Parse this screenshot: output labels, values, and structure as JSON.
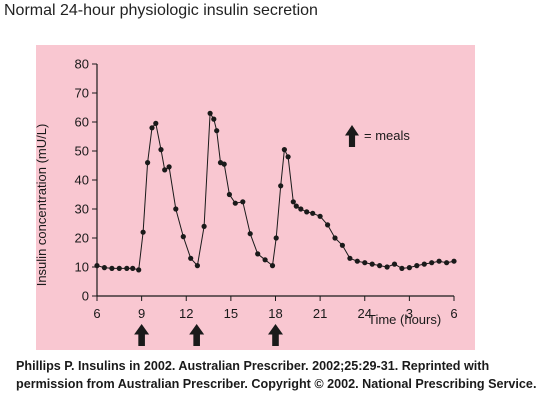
{
  "title": "Normal 24-hour physiologic insulin secretion",
  "caption": {
    "line1": "Phillips P. Insulins in 2002. Australian Prescriber. 2002;25:29-31. Reprinted with",
    "line2": "permission from Australian Prescriber. Copyright © 2002. National Prescribing Service."
  },
  "colors": {
    "plot_background": "#f9c7d1",
    "line": "#1a1a1a",
    "arrow": "#1a1a1a"
  },
  "chart_data": {
    "type": "line",
    "title": "Normal 24-hour physiologic insulin secretion",
    "xlabel": "Time (hours)",
    "ylabel": "Insulin concentration (mU/L)",
    "ylim": [
      0,
      80
    ],
    "xlim_clock_hours": [
      6,
      30
    ],
    "x_tick_labels": [
      "6",
      "9",
      "12",
      "15",
      "18",
      "21",
      "24",
      "3",
      "6"
    ],
    "y_tick_labels": [
      "0",
      "10",
      "20",
      "30",
      "40",
      "50",
      "60",
      "70",
      "80"
    ],
    "grid": false,
    "legend": {
      "label": "= meals",
      "icon": "up-arrow-icon",
      "placement": "right"
    },
    "meals_at_clock_hours": [
      9,
      12.7,
      18
    ],
    "series": [
      {
        "x": [
          6,
          6.5,
          7,
          7.5,
          8,
          8.4,
          8.8,
          9.1,
          9.4,
          9.7,
          9.95,
          10.3,
          10.55,
          10.85,
          11.3,
          11.8,
          12.3,
          12.75,
          13.2,
          13.6,
          13.85,
          14.05,
          14.3,
          14.55,
          14.9,
          15.3,
          15.8,
          16.3,
          16.8,
          17.3,
          17.8,
          18.05,
          18.35,
          18.6,
          18.85,
          19.2,
          19.4,
          19.7,
          20.1,
          20.5,
          21,
          21.5,
          22,
          22.5,
          23,
          23.5,
          24,
          24.5,
          25,
          25.5,
          26,
          26.5,
          27,
          27.5,
          28,
          28.5,
          29,
          29.5,
          30
        ],
        "y": [
          10.5,
          9.8,
          9.5,
          9.5,
          9.5,
          9.5,
          9,
          22,
          46,
          58,
          59.5,
          50.5,
          43.5,
          44.5,
          30,
          20.5,
          13,
          10.5,
          24,
          63,
          61,
          57,
          46,
          45.5,
          35,
          32,
          32.5,
          21.5,
          14.5,
          12.5,
          10.5,
          20,
          38,
          50.5,
          48,
          32.5,
          31,
          30,
          29,
          28.5,
          27.5,
          24.5,
          20,
          17.5,
          13,
          12,
          11.5,
          11,
          10.5,
          10,
          11,
          9.5,
          9.8,
          10.5,
          11,
          11.5,
          12,
          11.5,
          12
        ]
      }
    ]
  }
}
